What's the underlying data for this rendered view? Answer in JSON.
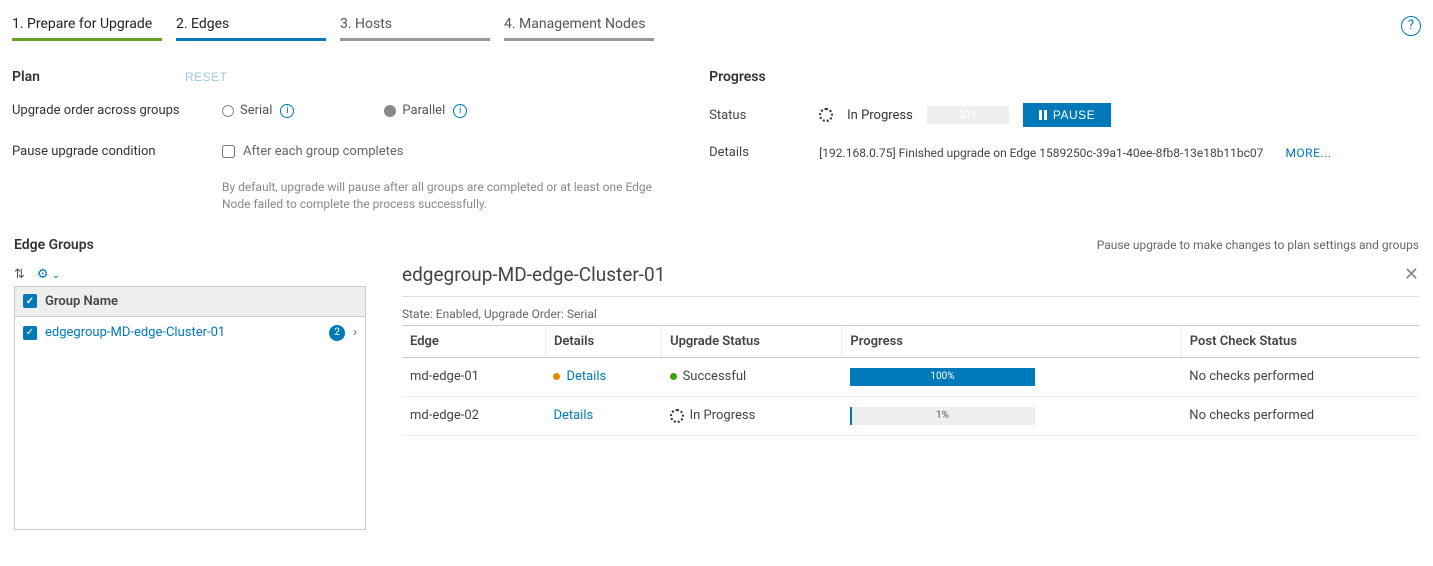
{
  "tabs": [
    {
      "label": "1. Prepare for Upgrade",
      "state": "done"
    },
    {
      "label": "2. Edges",
      "state": "current"
    },
    {
      "label": "3. Hosts",
      "state": "pending"
    },
    {
      "label": "4. Management Nodes",
      "state": "pending"
    }
  ],
  "plan": {
    "title": "Plan",
    "reset": "RESET",
    "order_label": "Upgrade order across groups",
    "serial": "Serial",
    "parallel": "Parallel",
    "pause_label": "Pause upgrade condition",
    "after_each": "After each group completes",
    "help_text": "By default, upgrade will pause after all groups are completed or at least one Edge Node failed to complete the process successfully."
  },
  "progress": {
    "title": "Progress",
    "status_label": "Status",
    "status_value": "In Progress",
    "percent": 50,
    "pause_btn": "PAUSE",
    "details_label": "Details",
    "details_text": "[192.168.0.75] Finished upgrade on Edge 1589250c-39a1-40ee-8fb8-13e18b11bc07",
    "more": "MORE..."
  },
  "edge_groups": {
    "title": "Edge Groups",
    "hint": "Pause upgrade to make changes to plan settings and groups",
    "col_header": "Group Name",
    "items": [
      {
        "name": "edgegroup-MD-edge-Cluster-01",
        "count": "2"
      }
    ]
  },
  "detail": {
    "title": "edgegroup-MD-edge-Cluster-01",
    "state_line": "State: Enabled, Upgrade Order: Serial",
    "columns": {
      "edge": "Edge",
      "details": "Details",
      "status": "Upgrade Status",
      "progress": "Progress",
      "post": "Post Check Status"
    },
    "rows": [
      {
        "edge": "md-edge-01",
        "details": "Details",
        "status": "Successful",
        "status_kind": "success",
        "progress": 100,
        "post": "No checks performed"
      },
      {
        "edge": "md-edge-02",
        "details": "Details",
        "status": "In Progress",
        "status_kind": "inprogress",
        "progress": 1,
        "post": "No checks performed"
      }
    ]
  },
  "colors": {
    "accent": "#0079b8",
    "green": "#62a420"
  }
}
